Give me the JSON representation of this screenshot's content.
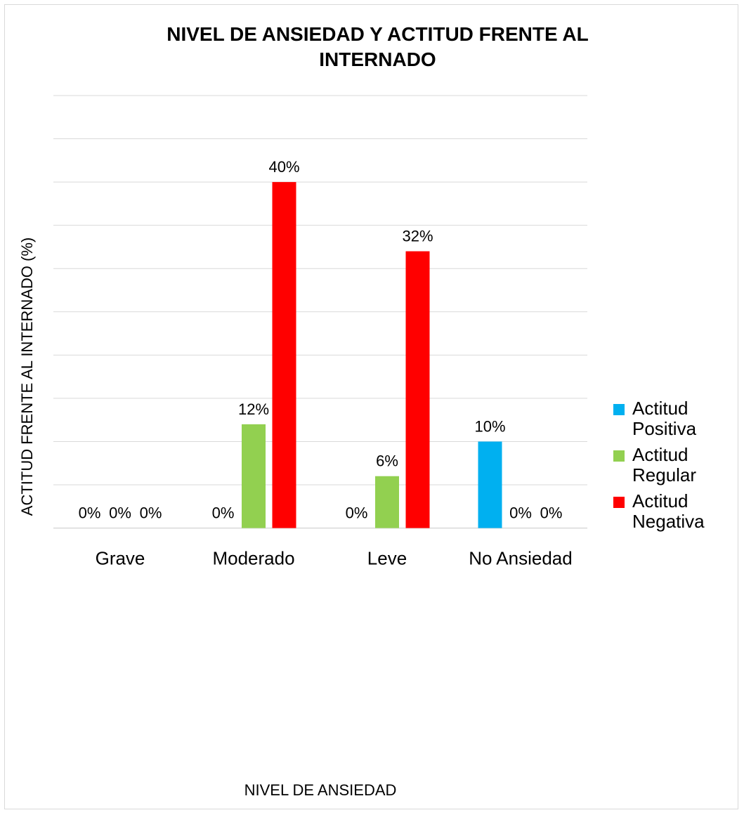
{
  "chart_data": {
    "type": "bar",
    "title": "NIVEL DE ANSIEDAD Y ACTITUD FRENTE AL INTERNADO",
    "title_lines": [
      "NIVEL DE ANSIEDAD Y ACTITUD FRENTE AL",
      "INTERNADO"
    ],
    "xlabel": "NIVEL DE ANSIEDAD",
    "ylabel": "ACTITUD FRENTE AL INTERNADO (%)",
    "categories": [
      "Grave",
      "Moderado",
      "Leve",
      "No Ansiedad"
    ],
    "ylim": [
      0,
      50
    ],
    "grid": true,
    "legend_position": "right",
    "series": [
      {
        "name": "Actitud Positiva",
        "name_lines": [
          "Actitud",
          "Positiva"
        ],
        "color": "#00b0f0",
        "values": [
          0,
          0,
          0,
          10
        ],
        "labels": [
          "0%",
          "0%",
          "0%",
          "10%"
        ]
      },
      {
        "name": "Actitud Regular",
        "name_lines": [
          "Actitud",
          "Regular"
        ],
        "color": "#92d050",
        "values": [
          0,
          12,
          6,
          0
        ],
        "labels": [
          "0%",
          "12%",
          "6%",
          "0%"
        ]
      },
      {
        "name": "Actitud Negativa",
        "name_lines": [
          "Actitud",
          "Negativa"
        ],
        "color": "#ff0000",
        "values": [
          0,
          40,
          32,
          0
        ],
        "labels": [
          "0%",
          "40%",
          "32%",
          "0%"
        ]
      }
    ]
  }
}
